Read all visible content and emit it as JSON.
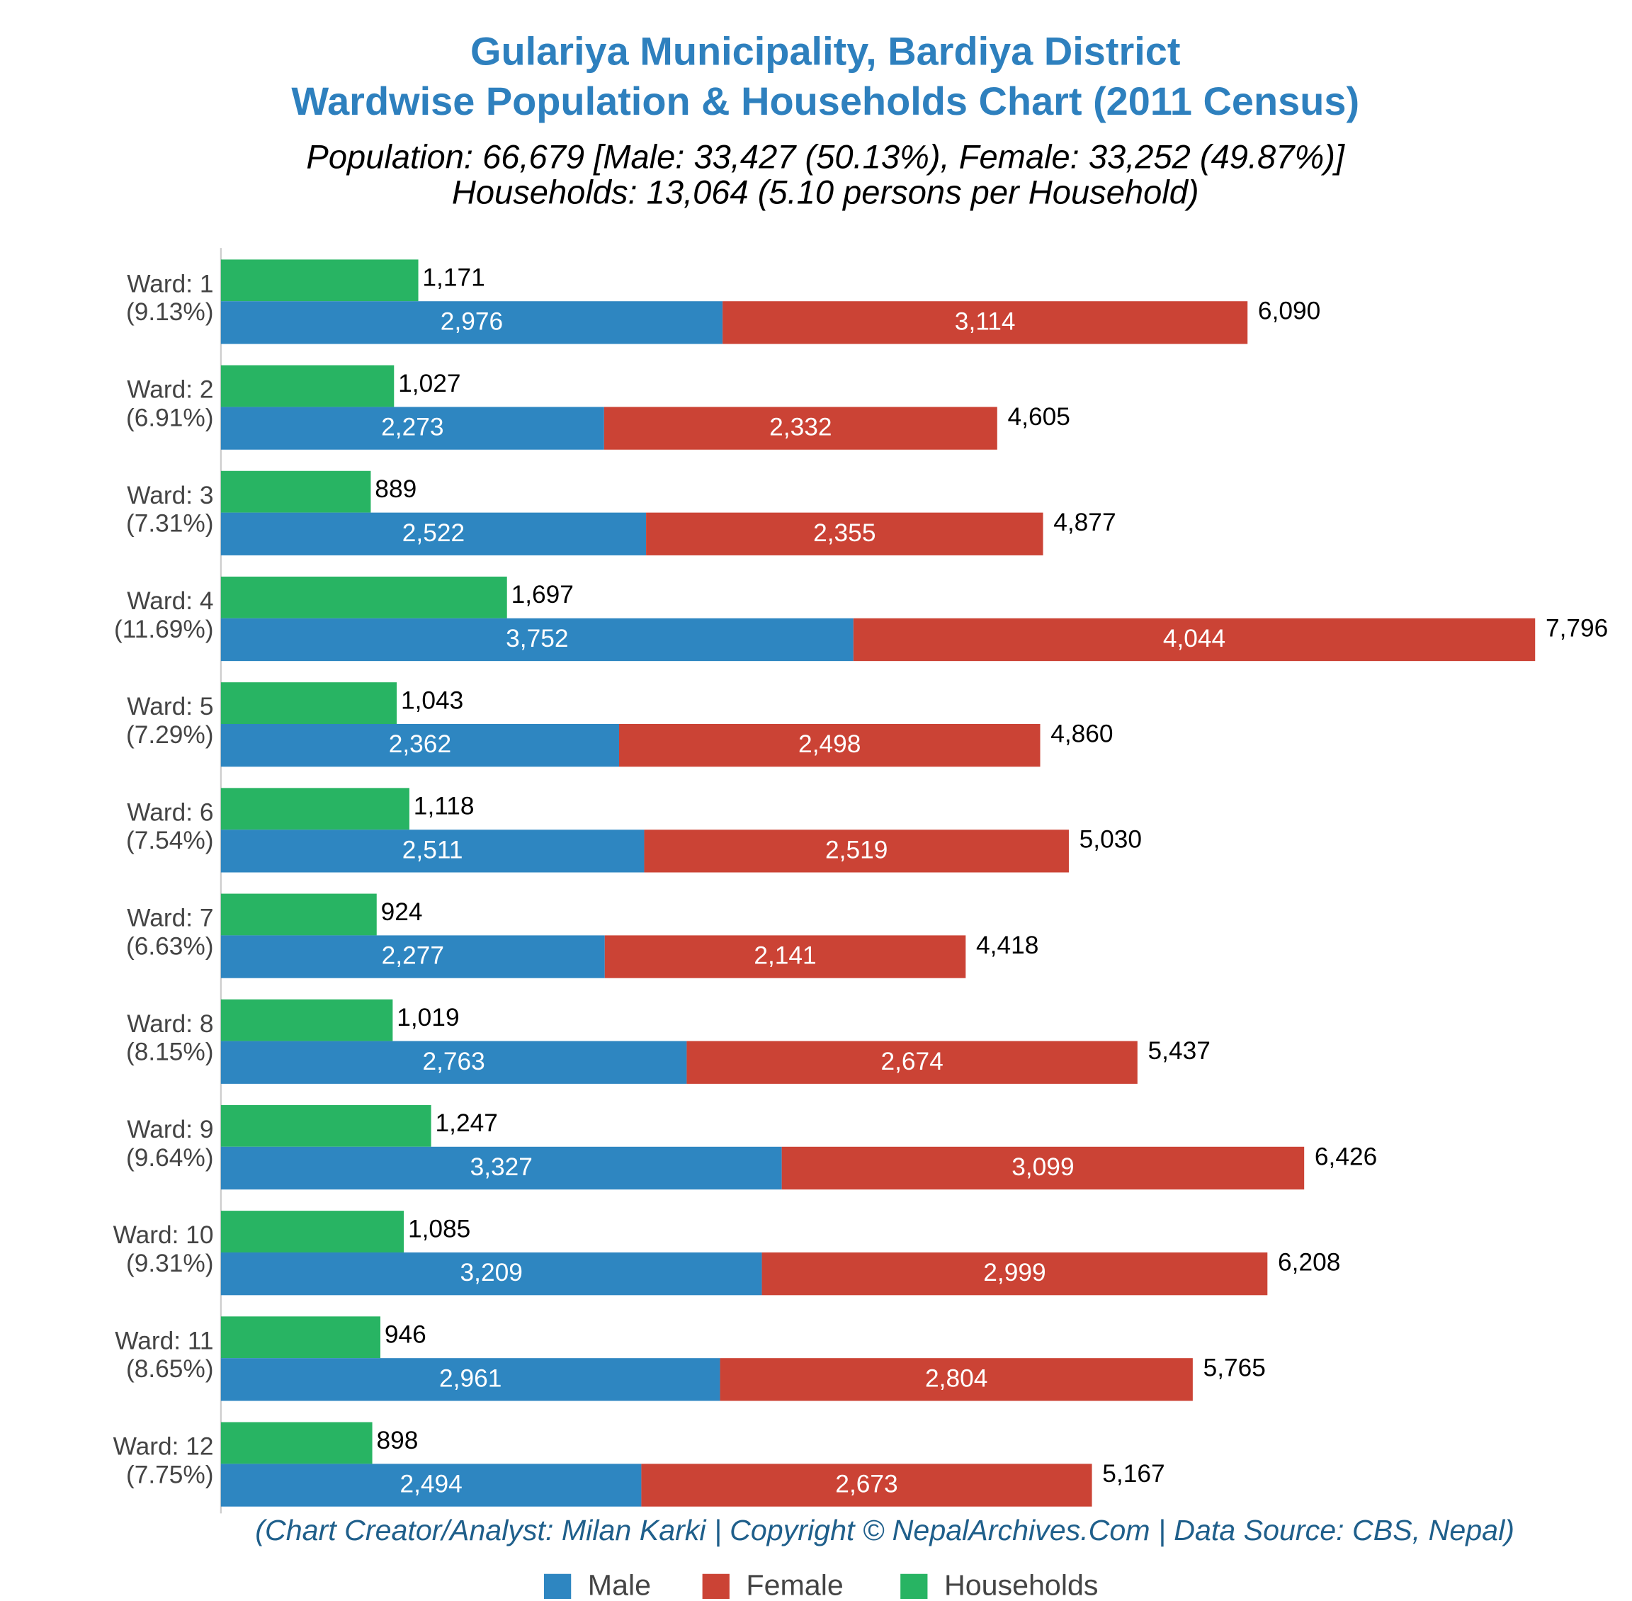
{
  "chart_data": {
    "type": "bar",
    "title": "Gulariya Municipality, Bardiya District",
    "title2": "Wardwise Population & Households Chart (2011 Census)",
    "subtitle": "Population: 66,679 [Male: 33,427 (50.13%), Female: 33,252 (49.87%)]",
    "subtitle2": "Households: 13,064 (5.10 persons per Household)",
    "footer": "(Chart Creator/Analyst: Milan Karki | Copyright © NepalArchives.Com | Data Source: CBS, Nepal)",
    "categories": [
      "Ward: 1",
      "Ward: 2",
      "Ward: 3",
      "Ward: 4",
      "Ward: 5",
      "Ward: 6",
      "Ward: 7",
      "Ward: 8",
      "Ward: 9",
      "Ward: 10",
      "Ward: 11",
      "Ward: 12"
    ],
    "category_notes": [
      "(9.13%)",
      "(6.91%)",
      "(7.31%)",
      "(11.69%)",
      "(7.29%)",
      "(7.54%)",
      "(6.63%)",
      "(8.15%)",
      "(9.64%)",
      "(9.31%)",
      "(8.65%)",
      "(7.75%)"
    ],
    "series": [
      {
        "name": "Male",
        "color": "#2e86c1",
        "values": [
          2976,
          2273,
          2522,
          3752,
          2362,
          2511,
          2277,
          2763,
          3327,
          3209,
          2961,
          2494
        ],
        "value_labels": [
          "2,976",
          "2,273",
          "2,522",
          "3,752",
          "2,362",
          "2,511",
          "2,277",
          "2,763",
          "3,327",
          "3,209",
          "2,961",
          "2,494"
        ]
      },
      {
        "name": "Female",
        "color": "#cb4335",
        "values": [
          3114,
          2332,
          2355,
          4044,
          2498,
          2519,
          2141,
          2674,
          3099,
          2999,
          2804,
          2673
        ],
        "value_labels": [
          "3,114",
          "2,332",
          "2,355",
          "4,044",
          "2,498",
          "2,519",
          "2,141",
          "2,674",
          "3,099",
          "2,999",
          "2,804",
          "2,673"
        ]
      },
      {
        "name": "Households",
        "color": "#28b463",
        "values": [
          1171,
          1027,
          889,
          1697,
          1043,
          1118,
          924,
          1019,
          1247,
          1085,
          946,
          898
        ],
        "value_labels": [
          "1,171",
          "1,027",
          "889",
          "1,697",
          "1,043",
          "1,118",
          "924",
          "1,019",
          "1,247",
          "1,085",
          "946",
          "898"
        ]
      }
    ],
    "total_labels": [
      "6,090",
      "4,605",
      "4,877",
      "7,796",
      "4,860",
      "5,030",
      "4,418",
      "5,437",
      "6,426",
      "6,208",
      "5,765",
      "5,167"
    ],
    "xlim": [
      0,
      8000
    ],
    "title_color": "#2e80be",
    "footer_color": "#1f5f8b"
  }
}
